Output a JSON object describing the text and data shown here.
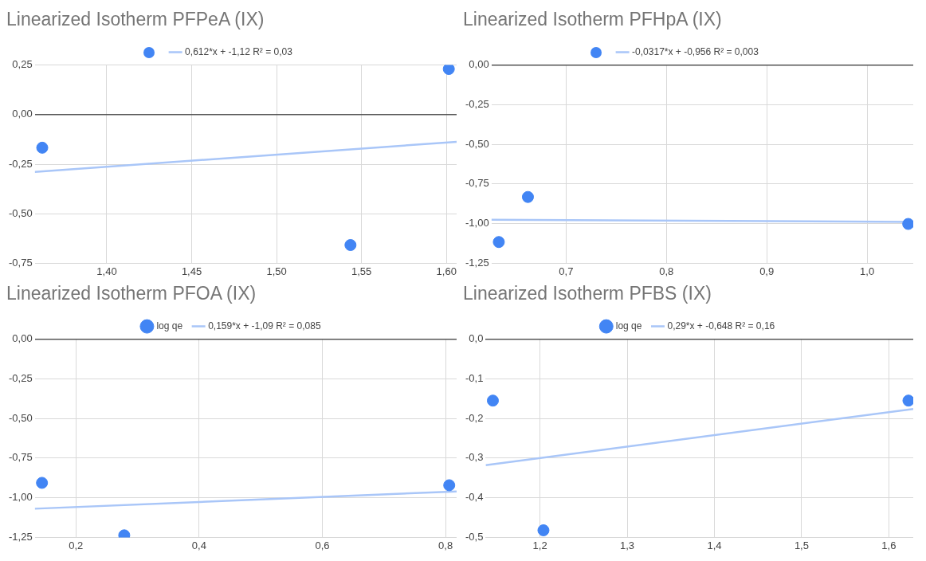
{
  "chart_data": [
    {
      "type": "scatter",
      "title": "Linearized Isotherm PFPeA (IX)",
      "legend": "top",
      "grid": true,
      "xlim": [
        1.3576,
        1.606
      ],
      "ylim": [
        -0.75,
        0.25
      ],
      "xticks": [
        {
          "value": 1.4,
          "label": "1,40"
        },
        {
          "value": 1.45,
          "label": "1,45"
        },
        {
          "value": 1.5,
          "label": "1,50"
        },
        {
          "value": 1.55,
          "label": "1,55"
        },
        {
          "value": 1.6,
          "label": "1,60"
        }
      ],
      "yticks": [
        {
          "value": -0.75,
          "label": "-0,75"
        },
        {
          "value": -0.5,
          "label": "-0,50"
        },
        {
          "value": -0.25,
          "label": "-0,25"
        },
        {
          "value": 0,
          "label": "0,00"
        },
        {
          "value": 0.25,
          "label": "0,25"
        }
      ],
      "series": [
        {
          "type": "scatter",
          "marker": "circle",
          "color": "#4285f4",
          "x": [
            1.362,
            1.5435,
            1.6014
          ],
          "values": [
            -0.167,
            -0.658,
            0.23
          ]
        },
        {
          "type": "line",
          "marker": "none",
          "name": "0,612*x + -1,12 R² = 0,03",
          "color": "#a9c6f8",
          "x": [
            1.3576,
            1.606
          ],
          "values": [
            -0.289,
            -0.137
          ]
        }
      ]
    },
    {
      "type": "scatter",
      "title": "Linearized Isotherm PFHpA (IX)",
      "legend": "top",
      "grid": true,
      "xlim": [
        0.6256,
        1.046
      ],
      "ylim": [
        -1.25,
        0
      ],
      "xticks": [
        {
          "value": 0.7,
          "label": "0,7"
        },
        {
          "value": 0.8,
          "label": "0,8"
        },
        {
          "value": 0.9,
          "label": "0,9"
        },
        {
          "value": 1.0,
          "label": "1,0"
        }
      ],
      "yticks": [
        {
          "value": -1.25,
          "label": "-1,25"
        },
        {
          "value": -1,
          "label": "-1,00"
        },
        {
          "value": -0.75,
          "label": "-0,75"
        },
        {
          "value": -0.5,
          "label": "-0,50"
        },
        {
          "value": -0.25,
          "label": "-0,25"
        },
        {
          "value": 0,
          "label": "0,00"
        }
      ],
      "series": [
        {
          "type": "scatter",
          "marker": "circle",
          "color": "#4285f4",
          "x": [
            0.633,
            0.662,
            1.041
          ],
          "values": [
            -1.116,
            -0.832,
            -1.002
          ]
        },
        {
          "type": "line",
          "marker": "none",
          "name": "-0,0317*x + -0,956 R² = 0,003",
          "color": "#a9c6f8",
          "x": [
            0.6256,
            1.046
          ],
          "values": [
            -0.976,
            -0.989
          ]
        }
      ]
    },
    {
      "type": "scatter",
      "title": "Linearized Isotherm PFOA (IX)",
      "legend": "top",
      "grid": true,
      "xlim": [
        0.1333,
        0.818
      ],
      "ylim": [
        -1.25,
        0
      ],
      "xticks": [
        {
          "value": 0.2,
          "label": "0,2"
        },
        {
          "value": 0.4,
          "label": "0,4"
        },
        {
          "value": 0.6,
          "label": "0,6"
        },
        {
          "value": 0.8,
          "label": "0,8"
        }
      ],
      "yticks": [
        {
          "value": -1.25,
          "label": "-1,25"
        },
        {
          "value": -1,
          "label": "-1,00"
        },
        {
          "value": -0.75,
          "label": "-0,75"
        },
        {
          "value": -0.5,
          "label": "-0,50"
        },
        {
          "value": -0.25,
          "label": "-0,25"
        },
        {
          "value": 0,
          "label": "0,00"
        }
      ],
      "series": [
        {
          "type": "scatter",
          "marker": "circle",
          "name": "log qe",
          "color": "#4285f4",
          "x": [
            0.145,
            0.2785,
            0.806
          ],
          "values": [
            -0.906,
            -1.237,
            -0.921
          ]
        },
        {
          "type": "line",
          "marker": "none",
          "name": "0,159*x + -1,09 R² = 0,085",
          "color": "#a9c6f8",
          "x": [
            0.1333,
            0.818
          ],
          "values": [
            -1.069,
            -0.96
          ]
        }
      ]
    },
    {
      "type": "scatter",
      "title": "Linearized Isotherm PFBS (IX)",
      "legend": "top",
      "grid": true,
      "xlim": [
        1.1377,
        1.628
      ],
      "ylim": [
        -0.5,
        0
      ],
      "xticks": [
        {
          "value": 1.2,
          "label": "1,2"
        },
        {
          "value": 1.3,
          "label": "1,3"
        },
        {
          "value": 1.4,
          "label": "1,4"
        },
        {
          "value": 1.5,
          "label": "1,5"
        },
        {
          "value": 1.6,
          "label": "1,6"
        }
      ],
      "yticks": [
        {
          "value": -0.5,
          "label": "-0,5"
        },
        {
          "value": -0.4,
          "label": "-0,4"
        },
        {
          "value": -0.3,
          "label": "-0,3"
        },
        {
          "value": -0.2,
          "label": "-0,2"
        },
        {
          "value": -0.1,
          "label": "-0,1"
        },
        {
          "value": 0,
          "label": "0,0"
        }
      ],
      "series": [
        {
          "type": "scatter",
          "marker": "circle",
          "name": "log qe",
          "color": "#4285f4",
          "x": [
            1.146,
            1.204,
            1.6225
          ],
          "values": [
            -0.155,
            -0.482,
            -0.155
          ]
        },
        {
          "type": "line",
          "marker": "none",
          "name": "0,29*x + -0,648 R² = 0,16",
          "color": "#a9c6f8",
          "x": [
            1.1377,
            1.628
          ],
          "values": [
            -0.318,
            -0.176
          ]
        }
      ]
    }
  ]
}
